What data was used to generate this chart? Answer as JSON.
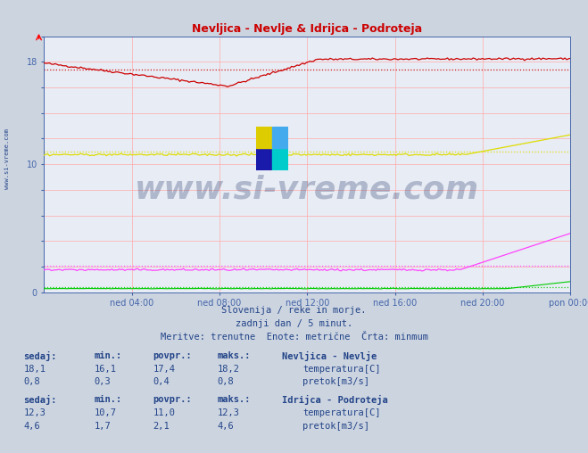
{
  "title": "Nevljica - Nevlje & Idrijca - Podroteja",
  "bg_color": "#ccd4e0",
  "plot_bg_color": "#e8ecf4",
  "xlabel_ticks": [
    "ned 04:00",
    "ned 08:00",
    "ned 12:00",
    "ned 16:00",
    "ned 20:00",
    "pon 00:00"
  ],
  "x_ticks_pos": [
    0.167,
    0.333,
    0.5,
    0.667,
    0.833,
    1.0
  ],
  "ylim": [
    0,
    20
  ],
  "yticks": [
    0,
    2,
    4,
    6,
    8,
    10,
    12,
    14,
    16,
    18,
    20
  ],
  "subtitle1": "Slovenija / reke in morje.",
  "subtitle2": "zadnji dan / 5 minut.",
  "subtitle3": "Meritve: trenutne  Enote: metrične  Črta: minmum",
  "watermark": "www.si-vreme.com",
  "watermark_color": "#2a3f6f",
  "watermark_alpha": 0.3,
  "n_points": 288,
  "nevlje_temp_color": "#cc0000",
  "nevlje_temp_avg": 17.4,
  "nevlje_pretok_color": "#00cc00",
  "nevlje_pretok_avg": 0.4,
  "idrijca_temp_color": "#dddd00",
  "idrijca_temp_avg": 11.0,
  "idrijca_pretok_color": "#ff44ff",
  "idrijca_pretok_avg": 2.1,
  "legend_nevlje_temp_color": "#cc0000",
  "legend_nevlje_pretok_color": "#00cc00",
  "legend_idrijca_temp_color": "#cccc00",
  "legend_idrijca_pretok_color": "#ff44ff",
  "text_color": "#224488",
  "axis_color": "#4466aa",
  "grid_color": "#ffaaaa",
  "avg_line_alpha": 0.9
}
